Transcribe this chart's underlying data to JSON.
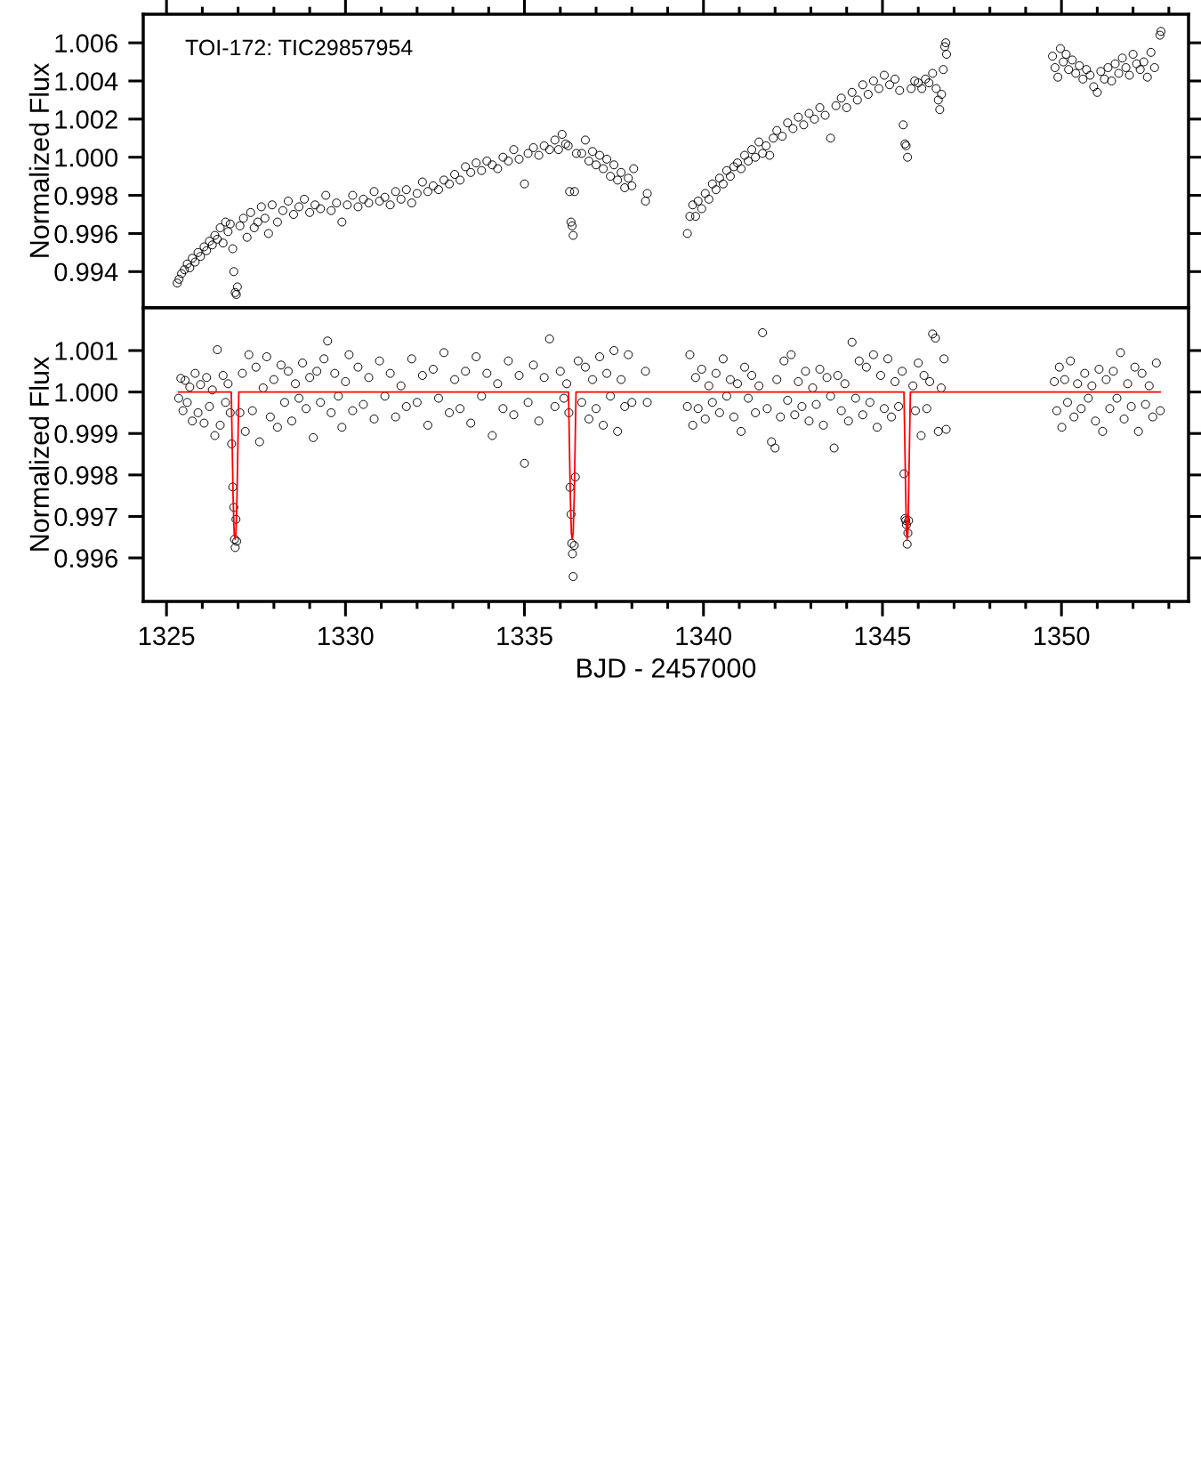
{
  "chart_data": [
    {
      "type": "scatter",
      "ylabel": "Normalized Flux",
      "annotations": [
        "TOI-172: TIC29857954"
      ],
      "tick_labels": "y",
      "xlim": [
        1324.35,
        1353.55
      ],
      "ylim": [
        0.9921,
        1.0075
      ],
      "xticks": [
        1325,
        {
          "value": 1326,
          "label": null
        },
        {
          "value": 1327,
          "label": null
        },
        {
          "value": 1328,
          "label": null
        },
        {
          "value": 1329,
          "label": null
        },
        1330,
        {
          "value": 1331,
          "label": null
        },
        {
          "value": 1332,
          "label": null
        },
        {
          "value": 1333,
          "label": null
        },
        {
          "value": 1334,
          "label": null
        },
        1335,
        {
          "value": 1336,
          "label": null
        },
        {
          "value": 1337,
          "label": null
        },
        {
          "value": 1338,
          "label": null
        },
        {
          "value": 1339,
          "label": null
        },
        1340,
        {
          "value": 1341,
          "label": null
        },
        {
          "value": 1342,
          "label": null
        },
        {
          "value": 1343,
          "label": null
        },
        {
          "value": 1344,
          "label": null
        },
        1345,
        {
          "value": 1346,
          "label": null
        },
        {
          "value": 1347,
          "label": null
        },
        {
          "value": 1348,
          "label": null
        },
        {
          "value": 1349,
          "label": null
        },
        1350,
        {
          "value": 1351,
          "label": null
        },
        {
          "value": 1352,
          "label": null
        },
        {
          "value": 1353,
          "label": null
        }
      ],
      "yticks": [
        0.994,
        0.996,
        0.998,
        {
          "value": 1.0,
          "label": "1.000"
        },
        1.002,
        1.004,
        1.006
      ],
      "series": [
        {
          "type": "scatter",
          "marker": "circle",
          "color": "#000000",
          "x": [
            1325.3,
            1325.35,
            1325.42,
            1325.5,
            1325.58,
            1325.65,
            1325.72,
            1325.8,
            1325.88,
            1325.95,
            1326.05,
            1326.12,
            1326.2,
            1326.28,
            1326.35,
            1326.42,
            1326.5,
            1326.58,
            1326.65,
            1326.72,
            1326.78,
            1326.85,
            1326.88,
            1326.92,
            1326.95,
            1326.98,
            1327.05,
            1327.15,
            1327.25,
            1327.35,
            1327.45,
            1327.55,
            1327.65,
            1327.75,
            1327.85,
            1327.95,
            1328.1,
            1328.25,
            1328.4,
            1328.55,
            1328.7,
            1328.85,
            1329.0,
            1329.15,
            1329.3,
            1329.45,
            1329.6,
            1329.75,
            1329.9,
            1330.05,
            1330.2,
            1330.35,
            1330.5,
            1330.65,
            1330.8,
            1330.95,
            1331.1,
            1331.25,
            1331.4,
            1331.55,
            1331.7,
            1331.85,
            1332.0,
            1332.15,
            1332.3,
            1332.45,
            1332.6,
            1332.75,
            1332.9,
            1333.05,
            1333.2,
            1333.35,
            1333.5,
            1333.65,
            1333.8,
            1333.95,
            1334.1,
            1334.25,
            1334.4,
            1334.55,
            1334.7,
            1334.85,
            1335.0,
            1335.1,
            1335.25,
            1335.4,
            1335.55,
            1335.7,
            1335.85,
            1335.95,
            1336.05,
            1336.15,
            1336.22,
            1336.26,
            1336.3,
            1336.33,
            1336.36,
            1336.4,
            1336.45,
            1336.6,
            1336.7,
            1336.8,
            1336.9,
            1337.0,
            1337.1,
            1337.2,
            1337.3,
            1337.4,
            1337.5,
            1337.6,
            1337.7,
            1337.8,
            1337.9,
            1338.0,
            1338.05,
            1338.38,
            1338.43,
            1339.55,
            1339.62,
            1339.7,
            1339.78,
            1339.85,
            1339.95,
            1340.05,
            1340.15,
            1340.25,
            1340.35,
            1340.45,
            1340.55,
            1340.65,
            1340.75,
            1340.85,
            1340.95,
            1341.05,
            1341.15,
            1341.25,
            1341.35,
            1341.45,
            1341.55,
            1341.65,
            1341.75,
            1341.85,
            1341.95,
            1342.05,
            1342.2,
            1342.35,
            1342.5,
            1342.65,
            1342.8,
            1342.95,
            1343.1,
            1343.25,
            1343.4,
            1343.55,
            1343.7,
            1343.85,
            1344.0,
            1344.15,
            1344.3,
            1344.45,
            1344.6,
            1344.75,
            1344.9,
            1345.05,
            1345.2,
            1345.35,
            1345.48,
            1345.58,
            1345.63,
            1345.66,
            1345.7,
            1345.8,
            1345.9,
            1346.0,
            1346.1,
            1346.2,
            1346.3,
            1346.4,
            1346.5,
            1346.56,
            1346.6,
            1346.65,
            1346.7,
            1346.74,
            1346.77,
            1346.79,
            1349.75,
            1349.82,
            1349.9,
            1349.97,
            1350.05,
            1350.13,
            1350.2,
            1350.3,
            1350.4,
            1350.5,
            1350.6,
            1350.7,
            1350.8,
            1350.9,
            1351.0,
            1351.1,
            1351.2,
            1351.3,
            1351.4,
            1351.5,
            1351.6,
            1351.7,
            1351.8,
            1351.9,
            1352.0,
            1352.1,
            1352.2,
            1352.3,
            1352.4,
            1352.5,
            1352.6,
            1352.75,
            1352.78
          ],
          "values": [
            0.9934,
            0.9936,
            0.9939,
            0.9941,
            0.9944,
            0.9942,
            0.9947,
            0.9945,
            0.995,
            0.9948,
            0.9953,
            0.9951,
            0.9956,
            0.9954,
            0.9959,
            0.9957,
            0.9963,
            0.9955,
            0.9966,
            0.9961,
            0.9965,
            0.9952,
            0.994,
            0.9929,
            0.9928,
            0.9932,
            0.9964,
            0.9968,
            0.9958,
            0.9971,
            0.9963,
            0.9966,
            0.9974,
            0.9968,
            0.996,
            0.9975,
            0.9966,
            0.9972,
            0.9977,
            0.997,
            0.9974,
            0.9978,
            0.9971,
            0.9975,
            0.9973,
            0.998,
            0.9972,
            0.9976,
            0.9966,
            0.9975,
            0.998,
            0.9974,
            0.9978,
            0.9976,
            0.9982,
            0.9977,
            0.9979,
            0.9975,
            0.9982,
            0.9978,
            0.9983,
            0.9976,
            0.9981,
            0.9987,
            0.9982,
            0.9985,
            0.9983,
            0.9988,
            0.9986,
            0.9991,
            0.9988,
            0.9995,
            0.9992,
            0.9997,
            0.9993,
            0.9998,
            0.9996,
            0.9994,
            1.0,
            0.9998,
            1.0004,
            0.9999,
            0.9986,
            1.0002,
            1.0005,
            1.0001,
            1.0006,
            1.0004,
            1.0009,
            1.0004,
            1.0012,
            1.0007,
            1.0006,
            0.9982,
            0.9966,
            0.9964,
            0.9959,
            0.9982,
            1.0002,
            1.0002,
            1.0009,
            0.9998,
            1.0003,
            0.9996,
            1.0001,
            0.9994,
            0.9999,
            0.999,
            0.9996,
            0.9988,
            0.9992,
            0.9984,
            0.9989,
            0.9985,
            0.9994,
            0.9977,
            0.9981,
            0.996,
            0.9969,
            0.9975,
            0.9969,
            0.9977,
            0.9973,
            0.9981,
            0.9978,
            0.9986,
            0.9983,
            0.9989,
            0.9986,
            0.9993,
            0.999,
            0.9995,
            0.9997,
            0.9994,
            1.0001,
            0.9998,
            1.0004,
            1.0,
            1.0008,
            1.0002,
            1.0006,
            1.0001,
            1.001,
            1.0014,
            1.0011,
            1.0018,
            1.0015,
            1.0021,
            1.0017,
            1.0023,
            1.002,
            1.0026,
            1.0022,
            1.001,
            1.0027,
            1.0031,
            1.0026,
            1.0034,
            1.003,
            1.0038,
            1.0033,
            1.004,
            1.0036,
            1.0043,
            1.0038,
            1.0041,
            1.0035,
            1.0017,
            1.0007,
            1.0006,
            1.0,
            1.0036,
            1.004,
            1.0039,
            1.0036,
            1.0041,
            1.0039,
            1.0044,
            1.0036,
            1.003,
            1.0025,
            1.0033,
            1.0046,
            1.0058,
            1.006,
            1.0054,
            1.0053,
            1.0047,
            1.0042,
            1.0057,
            1.005,
            1.0054,
            1.0046,
            1.0051,
            1.0044,
            1.0048,
            1.0041,
            1.0046,
            1.0043,
            1.0037,
            1.0034,
            1.0045,
            1.0041,
            1.0047,
            1.004,
            1.0049,
            1.0044,
            1.0052,
            1.0047,
            1.0043,
            1.0054,
            1.0049,
            1.0046,
            1.005,
            1.0042,
            1.0055,
            1.0047,
            1.0064,
            1.0066
          ]
        }
      ]
    },
    {
      "type": "scatter",
      "xlabel": "BJD - 2457000",
      "ylabel": "Normalized Flux",
      "xlim": [
        1324.35,
        1353.55
      ],
      "ylim": [
        0.99495,
        1.00203
      ],
      "xticks": [
        1325,
        {
          "value": 1326,
          "label": null
        },
        {
          "value": 1327,
          "label": null
        },
        {
          "value": 1328,
          "label": null
        },
        {
          "value": 1329,
          "label": null
        },
        1330,
        {
          "value": 1331,
          "label": null
        },
        {
          "value": 1332,
          "label": null
        },
        {
          "value": 1333,
          "label": null
        },
        {
          "value": 1334,
          "label": null
        },
        1335,
        {
          "value": 1336,
          "label": null
        },
        {
          "value": 1337,
          "label": null
        },
        {
          "value": 1338,
          "label": null
        },
        {
          "value": 1339,
          "label": null
        },
        1340,
        {
          "value": 1341,
          "label": null
        },
        {
          "value": 1342,
          "label": null
        },
        {
          "value": 1343,
          "label": null
        },
        {
          "value": 1344,
          "label": null
        },
        1345,
        {
          "value": 1346,
          "label": null
        },
        {
          "value": 1347,
          "label": null
        },
        {
          "value": 1348,
          "label": null
        },
        {
          "value": 1349,
          "label": null
        },
        1350,
        {
          "value": 1351,
          "label": null
        },
        {
          "value": 1352,
          "label": null
        },
        {
          "value": 1353,
          "label": null
        }
      ],
      "yticks": [
        0.996,
        0.997,
        0.998,
        0.999,
        {
          "value": 1.0,
          "label": "1.000"
        },
        1.001
      ],
      "series": [
        {
          "type": "scatter",
          "marker": "circle",
          "color": "#000000",
          "x": [
            1325.34,
            1325.4,
            1325.46,
            1325.52,
            1325.58,
            1325.65,
            1325.72,
            1325.8,
            1325.88,
            1325.95,
            1326.05,
            1326.12,
            1326.2,
            1326.28,
            1326.35,
            1326.42,
            1326.5,
            1326.58,
            1326.65,
            1326.72,
            1326.78,
            1326.82,
            1326.85,
            1326.88,
            1326.9,
            1326.92,
            1326.94,
            1326.96,
            1327.05,
            1327.12,
            1327.2,
            1327.3,
            1327.4,
            1327.5,
            1327.6,
            1327.7,
            1327.8,
            1327.9,
            1328.0,
            1328.1,
            1328.2,
            1328.3,
            1328.4,
            1328.5,
            1328.6,
            1328.7,
            1328.8,
            1328.9,
            1329.0,
            1329.1,
            1329.2,
            1329.3,
            1329.4,
            1329.5,
            1329.6,
            1329.7,
            1329.8,
            1329.9,
            1330.0,
            1330.1,
            1330.2,
            1330.35,
            1330.5,
            1330.65,
            1330.8,
            1330.95,
            1331.1,
            1331.25,
            1331.4,
            1331.55,
            1331.7,
            1331.85,
            1332.0,
            1332.15,
            1332.3,
            1332.45,
            1332.6,
            1332.75,
            1332.9,
            1333.05,
            1333.2,
            1333.35,
            1333.5,
            1333.65,
            1333.8,
            1333.95,
            1334.1,
            1334.25,
            1334.4,
            1334.55,
            1334.7,
            1334.85,
            1335.0,
            1335.1,
            1335.25,
            1335.4,
            1335.55,
            1335.7,
            1335.85,
            1336.0,
            1336.1,
            1336.18,
            1336.24,
            1336.27,
            1336.3,
            1336.32,
            1336.34,
            1336.36,
            1336.39,
            1336.42,
            1336.5,
            1336.6,
            1336.7,
            1336.8,
            1336.9,
            1337.0,
            1337.1,
            1337.2,
            1337.3,
            1337.4,
            1337.5,
            1337.6,
            1337.7,
            1337.8,
            1337.9,
            1338.0,
            1338.38,
            1338.43,
            1339.55,
            1339.62,
            1339.7,
            1339.78,
            1339.85,
            1339.95,
            1340.05,
            1340.15,
            1340.25,
            1340.35,
            1340.45,
            1340.55,
            1340.65,
            1340.75,
            1340.85,
            1340.95,
            1341.05,
            1341.15,
            1341.25,
            1341.35,
            1341.45,
            1341.55,
            1341.65,
            1341.78,
            1341.9,
            1342.0,
            1342.05,
            1342.15,
            1342.25,
            1342.35,
            1342.45,
            1342.55,
            1342.65,
            1342.75,
            1342.85,
            1342.95,
            1343.05,
            1343.15,
            1343.25,
            1343.35,
            1343.45,
            1343.55,
            1343.65,
            1343.75,
            1343.85,
            1343.95,
            1344.05,
            1344.15,
            1344.25,
            1344.35,
            1344.45,
            1344.55,
            1344.65,
            1344.75,
            1344.85,
            1344.95,
            1345.05,
            1345.15,
            1345.25,
            1345.35,
            1345.45,
            1345.55,
            1345.6,
            1345.63,
            1345.65,
            1345.67,
            1345.69,
            1345.71,
            1345.73,
            1345.85,
            1345.92,
            1346.0,
            1346.08,
            1346.16,
            1346.24,
            1346.32,
            1346.4,
            1346.48,
            1346.56,
            1346.64,
            1346.72,
            1346.78,
            1349.8,
            1349.87,
            1349.94,
            1350.01,
            1350.09,
            1350.17,
            1350.25,
            1350.35,
            1350.45,
            1350.55,
            1350.65,
            1350.75,
            1350.85,
            1350.95,
            1351.05,
            1351.15,
            1351.25,
            1351.35,
            1351.45,
            1351.55,
            1351.65,
            1351.75,
            1351.85,
            1351.95,
            1352.05,
            1352.15,
            1352.25,
            1352.35,
            1352.45,
            1352.55,
            1352.65,
            1352.76
          ],
          "values": [
            0.99985,
            1.00033,
            0.99955,
            1.00028,
            0.99975,
            1.00012,
            0.9993,
            1.00045,
            0.9995,
            1.00018,
            0.99925,
            1.00035,
            0.99965,
            1.00005,
            0.99895,
            1.00102,
            0.9992,
            1.0004,
            0.99975,
            1.0002,
            0.9995,
            0.99875,
            0.99771,
            0.99722,
            0.99645,
            0.99625,
            0.99693,
            0.9964,
            0.9995,
            1.00045,
            0.99905,
            1.0009,
            0.99955,
            1.0006,
            0.9988,
            1.0001,
            1.00085,
            0.9994,
            1.0003,
            0.99915,
            1.00065,
            0.99975,
            1.0005,
            0.9993,
            1.0002,
            0.99985,
            1.0007,
            0.9996,
            1.00035,
            0.9989,
            1.0005,
            0.99975,
            1.0008,
            1.00123,
            0.9995,
            1.00045,
            0.9999,
            0.99915,
            1.00025,
            1.0009,
            0.99955,
            1.0006,
            0.9997,
            1.00035,
            0.99935,
            1.00075,
            0.9999,
            1.00045,
            0.9994,
            1.00015,
            0.99965,
            1.0008,
            0.99975,
            1.0004,
            0.9992,
            1.00055,
            0.99985,
            1.00095,
            0.9995,
            1.0003,
            0.9996,
            1.0005,
            0.99925,
            1.00085,
            0.9999,
            1.00045,
            0.99895,
            1.0002,
            0.9996,
            1.00075,
            0.99945,
            1.0004,
            0.99828,
            0.99975,
            1.00065,
            0.9993,
            1.00035,
            1.00128,
            0.99965,
            1.0005,
            0.99985,
            1.0002,
            0.9995,
            0.9977,
            0.99705,
            0.99635,
            0.9961,
            0.99555,
            0.9963,
            0.99795,
            1.00075,
            0.99975,
            1.0006,
            0.99935,
            1.0003,
            0.9996,
            1.00085,
            0.9992,
            1.00045,
            0.9999,
            1.001,
            0.99905,
            1.0003,
            0.99965,
            1.0009,
            0.99975,
            1.0005,
            0.99975,
            0.99965,
            1.0009,
            0.9992,
            1.00035,
            0.9996,
            1.00055,
            0.99935,
            1.00015,
            0.99975,
            1.00045,
            0.9995,
            1.0008,
            0.9999,
            1.0003,
            0.9994,
            1.0002,
            0.99905,
            1.0006,
            0.99985,
            1.0004,
            0.9995,
            1.00015,
            1.00143,
            0.9996,
            0.9988,
            0.99865,
            1.0003,
            0.9994,
            1.00075,
            0.9998,
            1.0009,
            0.99945,
            1.00025,
            0.99965,
            1.0005,
            0.9993,
            1.0001,
            0.9997,
            1.00055,
            0.9992,
            1.00035,
            0.9999,
            0.99865,
            1.0004,
            0.99955,
            1.0002,
            0.9993,
            1.0012,
            0.99985,
            1.00075,
            0.99945,
            1.0006,
            0.99975,
            1.0009,
            0.99915,
            1.0004,
            0.9996,
            1.0008,
            0.9994,
            1.00025,
            0.99965,
            1.0005,
            0.99803,
            0.99695,
            0.9969,
            0.9968,
            0.99633,
            0.9966,
            0.9969,
            1.00015,
            0.99955,
            1.0007,
            0.99895,
            1.0004,
            0.9996,
            1.00025,
            1.0014,
            1.0013,
            0.99905,
            1.0001,
            1.0008,
            0.9991,
            1.00025,
            0.99955,
            1.0006,
            0.99915,
            1.0003,
            0.99975,
            1.00075,
            0.9994,
            1.0002,
            0.9996,
            1.00045,
            0.99985,
            1.00015,
            0.9993,
            1.00055,
            0.99905,
            1.0003,
            0.9996,
            1.0005,
            0.99985,
            1.00095,
            0.99935,
            1.0002,
            0.99965,
            1.0006,
            0.99905,
            1.00045,
            0.9997,
            1.00015,
            0.9994,
            1.0007,
            0.99955
          ]
        },
        {
          "type": "line",
          "color": "#ff0000",
          "x": [
            1325.34,
            1326.81,
            1326.83,
            1326.86,
            1326.89,
            1326.915,
            1326.94,
            1326.97,
            1327.0,
            1327.02,
            1336.23,
            1336.25,
            1336.28,
            1336.31,
            1336.335,
            1336.36,
            1336.39,
            1336.42,
            1336.44,
            1345.6,
            1345.62,
            1345.65,
            1345.67,
            1345.69,
            1345.71,
            1345.73,
            1345.76,
            1345.78,
            1352.76
          ],
          "values": [
            1.0,
            1.0,
            0.999,
            0.9975,
            0.9966,
            0.99645,
            0.9966,
            0.9975,
            0.999,
            1.0,
            1.0,
            0.999,
            0.9975,
            0.9966,
            0.99645,
            0.9966,
            0.9975,
            0.999,
            1.0,
            1.0,
            0.999,
            0.9975,
            0.9966,
            0.99645,
            0.9966,
            0.9975,
            0.999,
            1.0,
            1.0
          ]
        }
      ]
    }
  ]
}
